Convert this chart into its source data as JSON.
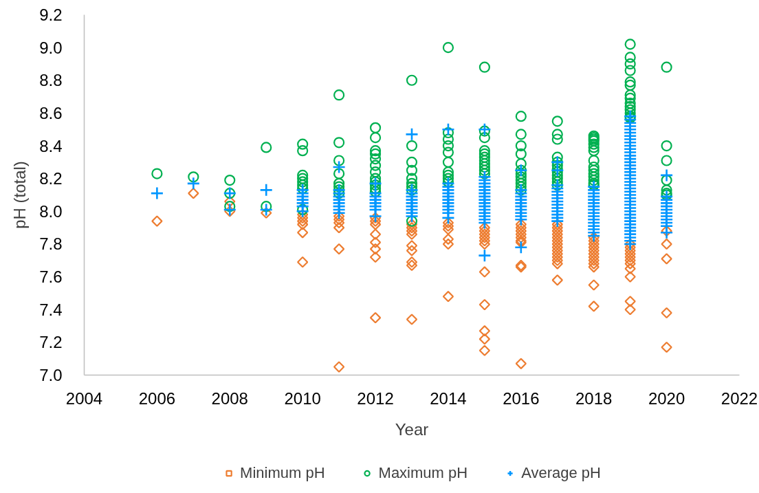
{
  "chart_data": {
    "type": "scatter",
    "xlabel": "Year",
    "ylabel": "pH (total)",
    "xlim": [
      2004,
      2022
    ],
    "xticks": [
      2004,
      2006,
      2008,
      2010,
      2012,
      2014,
      2016,
      2018,
      2020,
      2022
    ],
    "ylim": [
      7.0,
      9.2
    ],
    "yticks": [
      {
        "value": 7.0,
        "label": "7.0"
      },
      7.2,
      7.4,
      7.6,
      7.8,
      {
        "value": 8.0,
        "label": "8.0"
      },
      8.2,
      8.4,
      8.6,
      8.8,
      {
        "value": 9.0,
        "label": "9.0"
      },
      9.2
    ],
    "legend": "bottom",
    "series": [
      {
        "name": "Minimum pH",
        "color": "#ed7d31",
        "marker": "diamond",
        "x": [
          2006,
          2007,
          2008,
          2008,
          2009,
          2010,
          2010,
          2010,
          2010,
          2010,
          2010,
          2011,
          2011,
          2011,
          2011,
          2011,
          2011,
          2012,
          2012,
          2012,
          2012,
          2012,
          2012,
          2012,
          2012,
          2013,
          2013,
          2013,
          2013,
          2013,
          2013,
          2013,
          2013,
          2013,
          2014,
          2014,
          2014,
          2014,
          2014,
          2014,
          2015,
          2015,
          2015,
          2015,
          2015,
          2015,
          2015,
          2015,
          2015,
          2015,
          2015,
          2016,
          2016,
          2016,
          2016,
          2016,
          2016,
          2016,
          2016,
          2016,
          2016,
          2017,
          2017,
          2017,
          2017,
          2017,
          2017,
          2017,
          2017,
          2017,
          2017,
          2017,
          2017,
          2017,
          2017,
          2018,
          2018,
          2018,
          2018,
          2018,
          2018,
          2018,
          2018,
          2018,
          2018,
          2018,
          2018,
          2019,
          2019,
          2019,
          2019,
          2019,
          2019,
          2019,
          2019,
          2019,
          2019,
          2019,
          2020,
          2020,
          2020,
          2020,
          2020
        ],
        "values": [
          7.94,
          8.11,
          8.06,
          8.0,
          7.99,
          7.98,
          7.96,
          7.94,
          7.92,
          7.87,
          7.69,
          7.97,
          7.95,
          7.93,
          7.9,
          7.77,
          7.05,
          7.96,
          7.94,
          7.92,
          7.86,
          7.81,
          7.77,
          7.72,
          7.35,
          7.92,
          7.9,
          7.88,
          7.86,
          7.79,
          7.76,
          7.69,
          7.67,
          7.34,
          7.93,
          7.91,
          7.89,
          7.83,
          7.8,
          7.48,
          7.9,
          7.88,
          7.86,
          7.84,
          7.82,
          7.8,
          7.63,
          7.43,
          7.27,
          7.22,
          7.15,
          7.92,
          7.9,
          7.88,
          7.86,
          7.84,
          7.82,
          7.81,
          7.67,
          7.66,
          7.07,
          7.92,
          7.9,
          7.88,
          7.86,
          7.84,
          7.82,
          7.8,
          7.78,
          7.76,
          7.74,
          7.72,
          7.7,
          7.68,
          7.58,
          7.84,
          7.82,
          7.8,
          7.78,
          7.76,
          7.74,
          7.72,
          7.7,
          7.68,
          7.66,
          7.55,
          7.42,
          7.8,
          7.78,
          7.76,
          7.74,
          7.72,
          7.7,
          7.68,
          7.65,
          7.6,
          7.45,
          7.4,
          7.88,
          7.8,
          7.71,
          7.38,
          7.17
        ]
      },
      {
        "name": "Maximum pH",
        "color": "#00b050",
        "marker": "circle",
        "x": [
          2006,
          2007,
          2008,
          2008,
          2008,
          2009,
          2009,
          2010,
          2010,
          2010,
          2010,
          2010,
          2010,
          2010,
          2010,
          2011,
          2011,
          2011,
          2011,
          2011,
          2011,
          2011,
          2011,
          2012,
          2012,
          2012,
          2012,
          2012,
          2012,
          2012,
          2012,
          2012,
          2012,
          2012,
          2012,
          2013,
          2013,
          2013,
          2013,
          2013,
          2013,
          2013,
          2013,
          2013,
          2014,
          2014,
          2014,
          2014,
          2014,
          2014,
          2014,
          2014,
          2014,
          2014,
          2015,
          2015,
          2015,
          2015,
          2015,
          2015,
          2015,
          2015,
          2015,
          2015,
          2015,
          2016,
          2016,
          2016,
          2016,
          2016,
          2016,
          2016,
          2016,
          2016,
          2016,
          2016,
          2016,
          2017,
          2017,
          2017,
          2017,
          2017,
          2017,
          2017,
          2017,
          2017,
          2017,
          2017,
          2017,
          2018,
          2018,
          2018,
          2018,
          2018,
          2018,
          2018,
          2018,
          2018,
          2018,
          2018,
          2018,
          2018,
          2018,
          2018,
          2019,
          2019,
          2019,
          2019,
          2019,
          2019,
          2019,
          2019,
          2019,
          2019,
          2019,
          2019,
          2019,
          2019,
          2020,
          2020,
          2020,
          2020,
          2020,
          2020,
          2020
        ],
        "values": [
          8.23,
          8.21,
          8.19,
          8.11,
          8.03,
          8.39,
          8.03,
          8.41,
          8.37,
          8.22,
          8.2,
          8.18,
          8.16,
          8.14,
          8.01,
          8.71,
          8.42,
          8.31,
          8.23,
          8.17,
          8.15,
          8.13,
          8.11,
          8.51,
          8.45,
          8.37,
          8.35,
          8.32,
          8.28,
          8.24,
          8.2,
          8.18,
          8.16,
          8.14,
          8.12,
          8.8,
          8.4,
          8.3,
          8.25,
          8.2,
          8.17,
          8.15,
          8.13,
          7.94,
          9.0,
          8.48,
          8.44,
          8.4,
          8.36,
          8.3,
          8.24,
          8.22,
          8.2,
          8.18,
          8.88,
          8.49,
          8.45,
          8.37,
          8.35,
          8.33,
          8.31,
          8.29,
          8.27,
          8.25,
          8.23,
          8.58,
          8.47,
          8.4,
          8.35,
          8.29,
          8.25,
          8.23,
          8.21,
          8.19,
          8.17,
          8.15,
          8.13,
          8.55,
          8.47,
          8.44,
          8.33,
          8.3,
          8.28,
          8.26,
          8.24,
          8.22,
          8.2,
          8.18,
          8.16,
          8.46,
          8.45,
          8.44,
          8.43,
          8.41,
          8.39,
          8.37,
          8.31,
          8.27,
          8.25,
          8.23,
          8.21,
          8.19,
          8.17,
          8.16,
          9.02,
          8.94,
          8.9,
          8.86,
          8.79,
          8.77,
          8.71,
          8.69,
          8.66,
          8.64,
          8.62,
          8.6,
          8.58,
          8.57,
          8.88,
          8.4,
          8.31,
          8.19,
          8.13,
          8.11,
          8.1
        ]
      },
      {
        "name": "Average pH",
        "color": "#0096ff",
        "marker": "cross",
        "x": [
          2006,
          2007,
          2008,
          2008,
          2009,
          2009,
          2010,
          2010,
          2010,
          2010,
          2010,
          2010,
          2010,
          2011,
          2011,
          2011,
          2011,
          2011,
          2011,
          2011,
          2011,
          2011,
          2012,
          2012,
          2012,
          2012,
          2012,
          2012,
          2012,
          2012,
          2013,
          2013,
          2013,
          2013,
          2013,
          2013,
          2013,
          2013,
          2013,
          2013,
          2014,
          2014,
          2014,
          2014,
          2014,
          2014,
          2014,
          2014,
          2014,
          2014,
          2014,
          2014,
          2015,
          2015,
          2015,
          2015,
          2015,
          2015,
          2015,
          2015,
          2015,
          2015,
          2015,
          2015,
          2015,
          2015,
          2015,
          2015,
          2015,
          2016,
          2016,
          2016,
          2016,
          2016,
          2016,
          2016,
          2016,
          2016,
          2016,
          2016,
          2016,
          2017,
          2017,
          2017,
          2017,
          2017,
          2017,
          2017,
          2017,
          2017,
          2017,
          2017,
          2017,
          2017,
          2017,
          2018,
          2018,
          2018,
          2018,
          2018,
          2018,
          2018,
          2018,
          2018,
          2018,
          2018,
          2018,
          2018,
          2018,
          2018,
          2018,
          2019,
          2019,
          2019,
          2019,
          2019,
          2019,
          2019,
          2019,
          2019,
          2019,
          2019,
          2019,
          2019,
          2019,
          2019,
          2019,
          2019,
          2019,
          2019,
          2019,
          2019,
          2019,
          2019,
          2019,
          2019,
          2019,
          2019,
          2019,
          2019,
          2019,
          2019,
          2019,
          2019,
          2019,
          2019,
          2019,
          2019,
          2019,
          2019,
          2019,
          2020,
          2020,
          2020,
          2020,
          2020,
          2020,
          2020,
          2020,
          2020,
          2020,
          2020,
          2020
        ],
        "values": [
          8.11,
          8.17,
          8.11,
          8.01,
          8.13,
          8.01,
          8.13,
          8.11,
          8.09,
          8.07,
          8.05,
          8.03,
          8.0,
          8.27,
          8.13,
          8.11,
          8.09,
          8.07,
          8.05,
          8.03,
          8.01,
          7.99,
          8.17,
          8.11,
          8.09,
          8.07,
          8.05,
          8.03,
          8.01,
          7.97,
          8.47,
          8.13,
          8.11,
          8.09,
          8.07,
          8.05,
          8.03,
          8.01,
          7.99,
          7.97,
          8.5,
          8.17,
          8.15,
          8.13,
          8.11,
          8.09,
          8.07,
          8.05,
          8.03,
          8.01,
          7.99,
          7.96,
          8.5,
          8.21,
          8.19,
          8.17,
          8.15,
          8.13,
          8.11,
          8.09,
          8.07,
          8.05,
          8.03,
          8.01,
          7.99,
          7.97,
          7.95,
          7.93,
          7.73,
          8.25,
          8.13,
          8.11,
          8.09,
          8.07,
          8.05,
          8.03,
          8.01,
          7.99,
          7.97,
          7.95,
          7.78,
          8.3,
          8.25,
          8.16,
          8.14,
          8.12,
          8.1,
          8.08,
          8.06,
          8.04,
          8.02,
          8.0,
          7.98,
          7.96,
          7.94,
          8.15,
          8.13,
          8.11,
          8.09,
          8.07,
          8.05,
          8.03,
          8.01,
          7.99,
          7.97,
          7.95,
          7.93,
          7.91,
          7.89,
          7.87,
          7.85,
          8.58,
          8.56,
          8.54,
          8.52,
          8.5,
          8.48,
          8.46,
          8.44,
          8.42,
          8.4,
          8.38,
          8.36,
          8.34,
          8.32,
          8.3,
          8.28,
          8.26,
          8.24,
          8.22,
          8.2,
          8.18,
          8.16,
          8.14,
          8.12,
          8.1,
          8.08,
          8.06,
          8.04,
          8.02,
          8.0,
          7.98,
          7.96,
          7.94,
          7.92,
          7.9,
          7.88,
          7.86,
          7.84,
          7.82,
          7.8,
          8.22,
          8.09,
          8.07,
          8.05,
          8.03,
          8.01,
          7.99,
          7.97,
          7.95,
          7.93,
          7.91,
          7.87
        ]
      }
    ]
  }
}
